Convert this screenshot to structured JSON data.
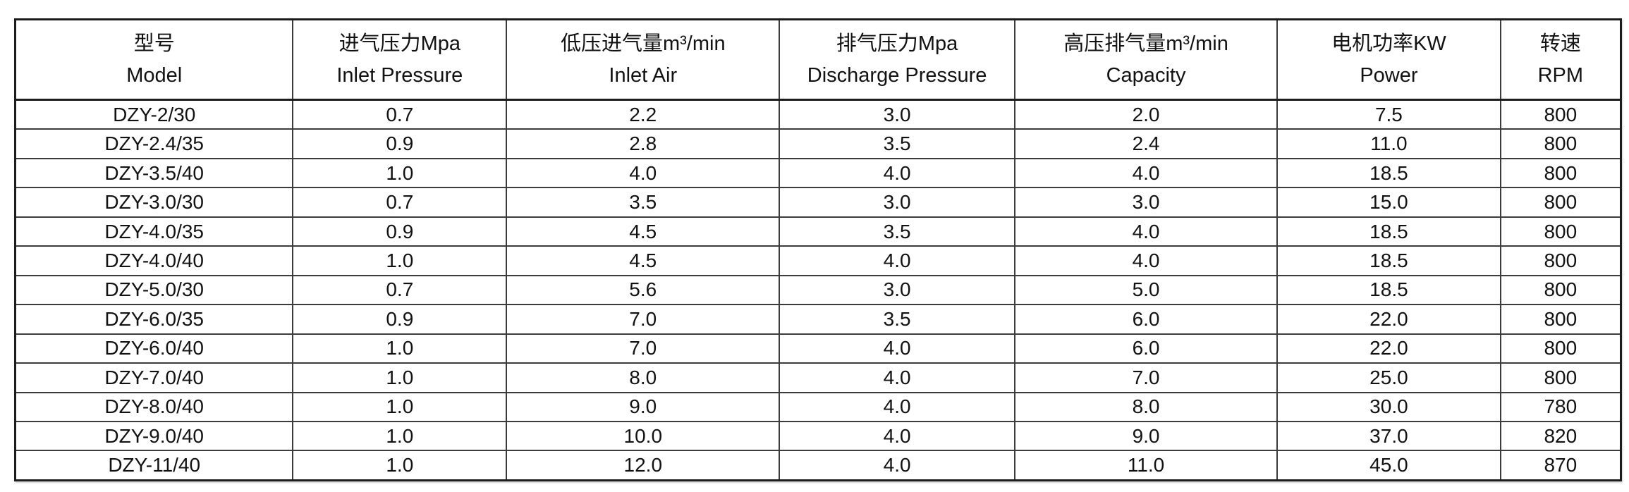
{
  "table": {
    "columns": [
      {
        "zh": "型号",
        "en": "Model"
      },
      {
        "zh": "进气压力Mpa",
        "en": "Inlet Pressure"
      },
      {
        "zh": "低压进气量m³/min",
        "en": "Inlet Air"
      },
      {
        "zh": "排气压力Mpa",
        "en": "Discharge Pressure"
      },
      {
        "zh": "高压排气量m³/min",
        "en": "Capacity"
      },
      {
        "zh": "电机功率KW",
        "en": "Power"
      },
      {
        "zh": "转速",
        "en": "RPM"
      }
    ],
    "rows": [
      [
        "DZY-2/30",
        "0.7",
        "2.2",
        "3.0",
        "2.0",
        "7.5",
        "800"
      ],
      [
        "DZY-2.4/35",
        "0.9",
        "2.8",
        "3.5",
        "2.4",
        "11.0",
        "800"
      ],
      [
        "DZY-3.5/40",
        "1.0",
        "4.0",
        "4.0",
        "4.0",
        "18.5",
        "800"
      ],
      [
        "DZY-3.0/30",
        "0.7",
        "3.5",
        "3.0",
        "3.0",
        "15.0",
        "800"
      ],
      [
        "DZY-4.0/35",
        "0.9",
        "4.5",
        "3.5",
        "4.0",
        "18.5",
        "800"
      ],
      [
        "DZY-4.0/40",
        "1.0",
        "4.5",
        "4.0",
        "4.0",
        "18.5",
        "800"
      ],
      [
        "DZY-5.0/30",
        "0.7",
        "5.6",
        "3.0",
        "5.0",
        "18.5",
        "800"
      ],
      [
        "DZY-6.0/35",
        "0.9",
        "7.0",
        "3.5",
        "6.0",
        "22.0",
        "800"
      ],
      [
        "DZY-6.0/40",
        "1.0",
        "7.0",
        "4.0",
        "6.0",
        "22.0",
        "800"
      ],
      [
        "DZY-7.0/40",
        "1.0",
        "8.0",
        "4.0",
        "7.0",
        "25.0",
        "800"
      ],
      [
        "DZY-8.0/40",
        "1.0",
        "9.0",
        "4.0",
        "8.0",
        "30.0",
        "780"
      ],
      [
        "DZY-9.0/40",
        "1.0",
        "10.0",
        "4.0",
        "9.0",
        "37.0",
        "820"
      ],
      [
        "DZY-11/40",
        "1.0",
        "12.0",
        "4.0",
        "11.0",
        "45.0",
        "870"
      ]
    ]
  }
}
